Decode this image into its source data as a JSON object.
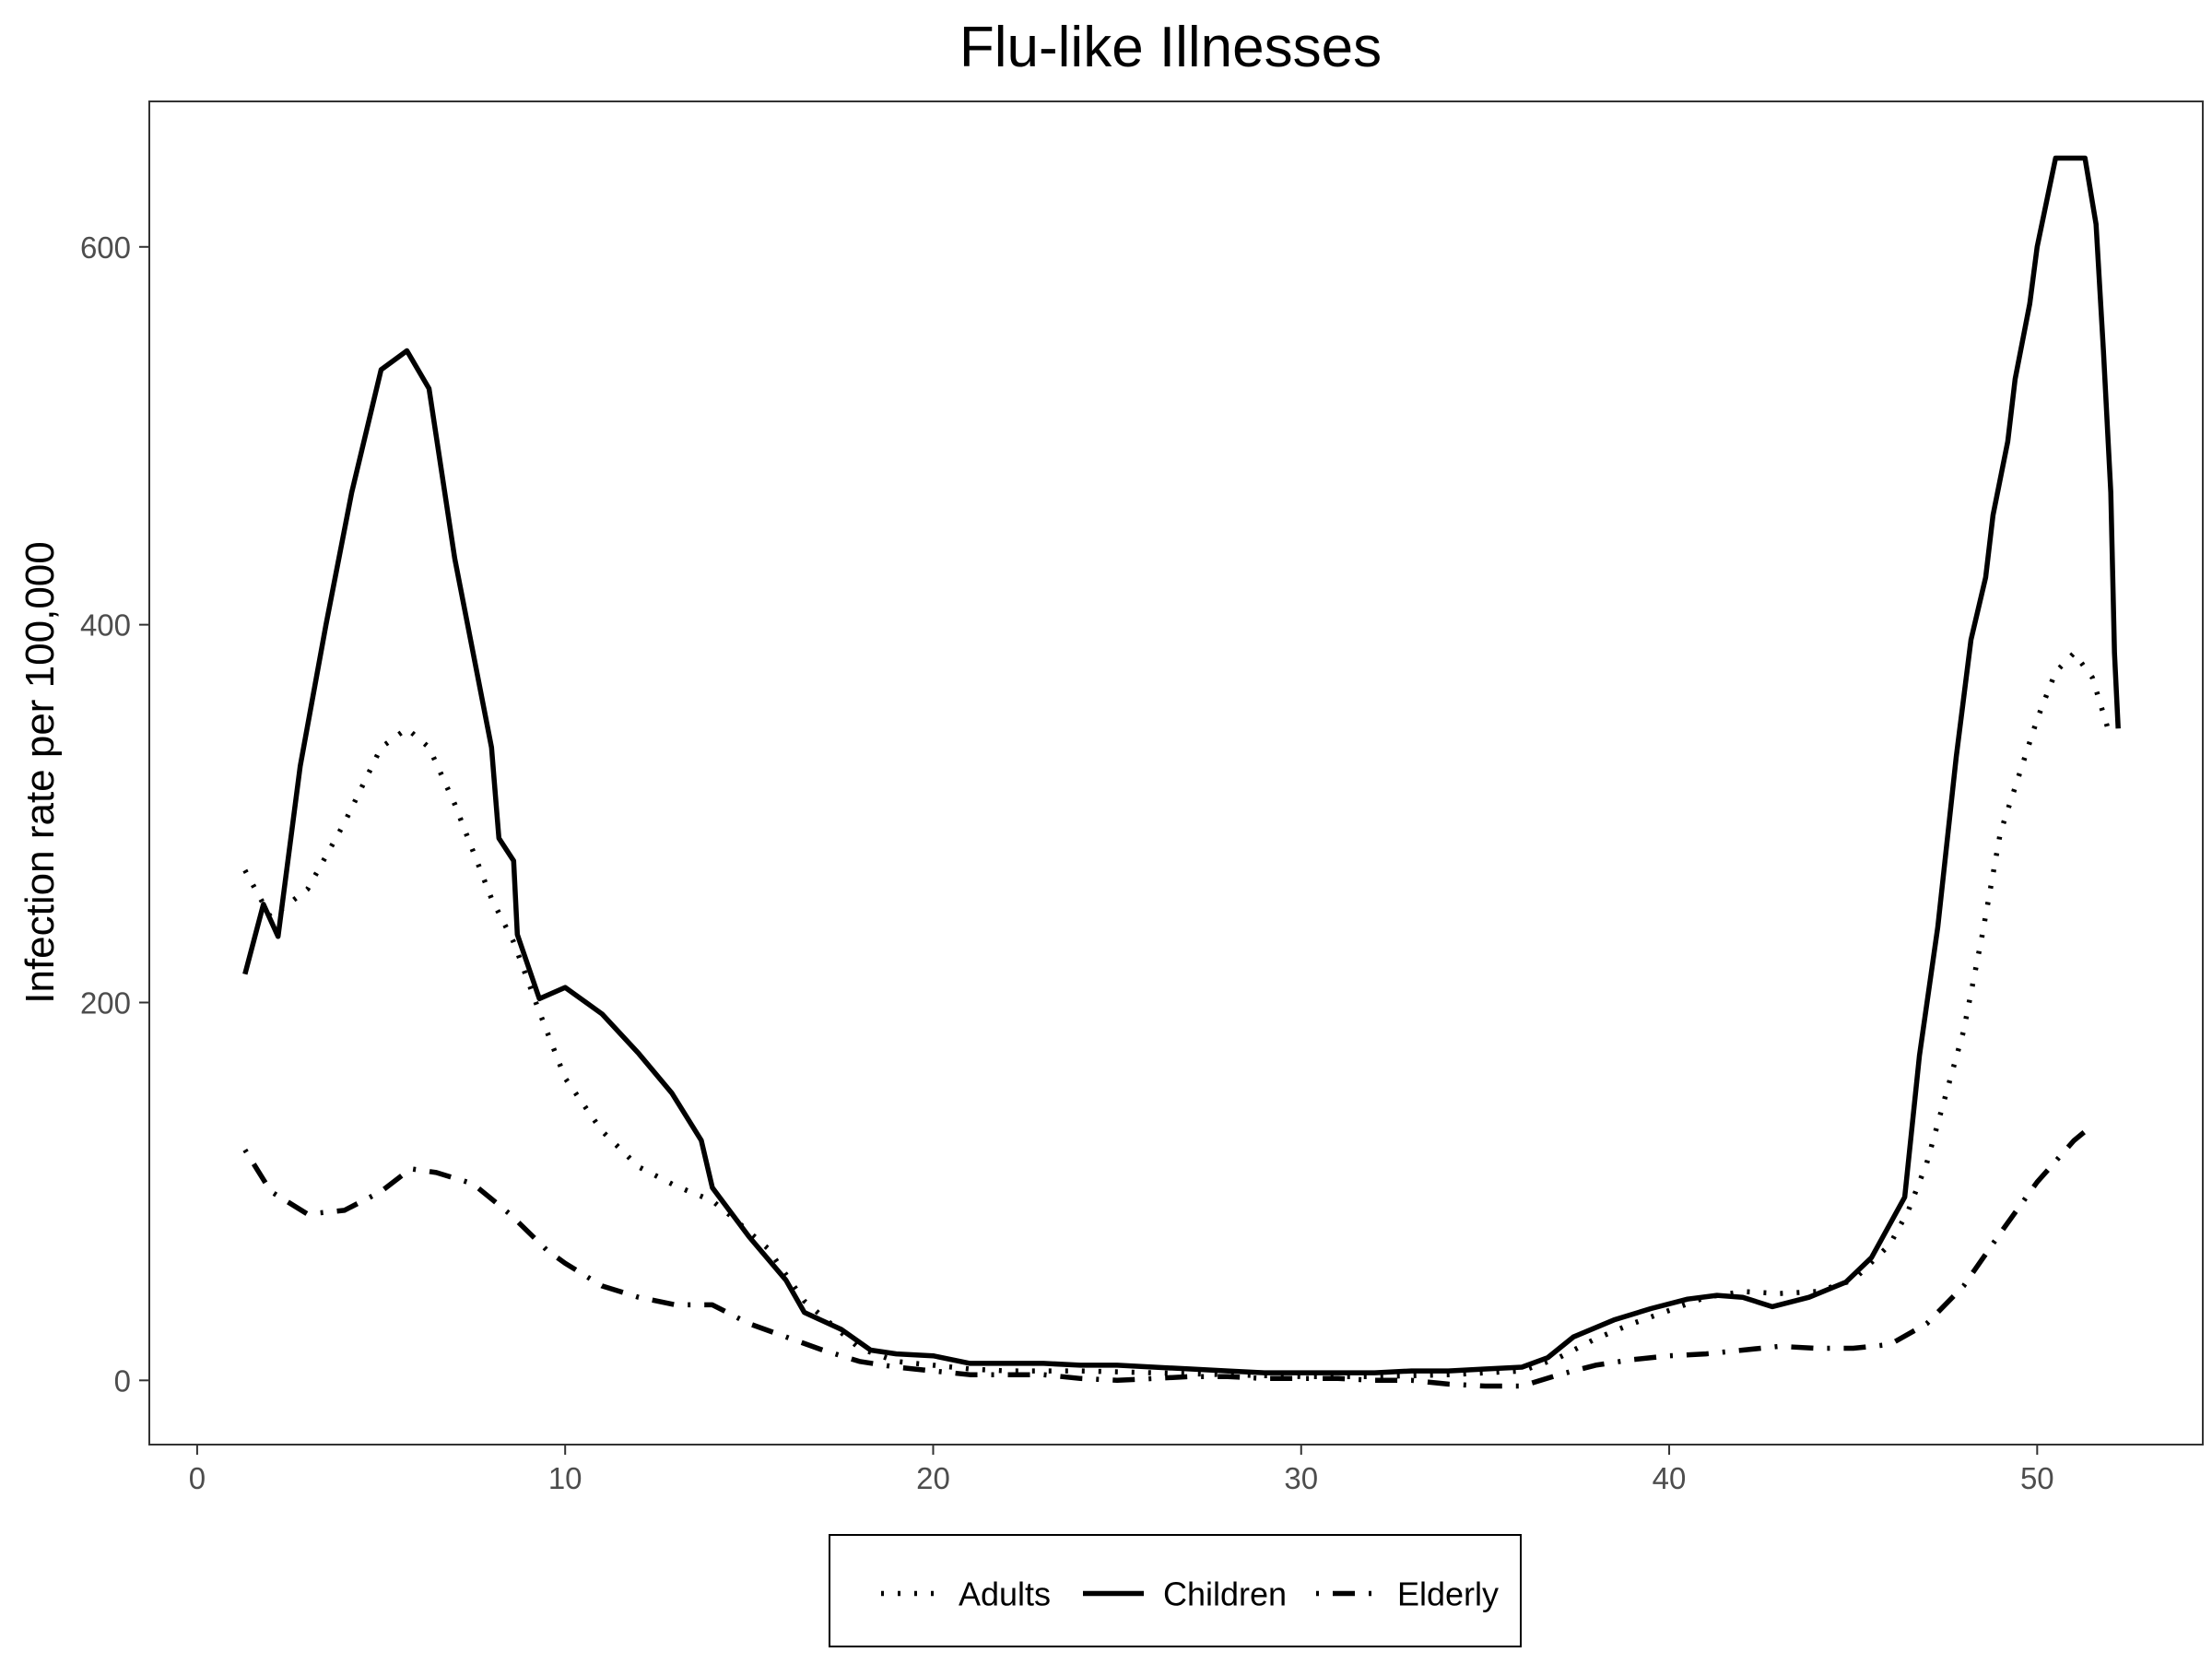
{
  "chart_data": {
    "type": "line",
    "title": "Flu-like Illnesses",
    "xlabel": "",
    "ylabel": "Infection rate per 100,000",
    "xlim": [
      -1.3,
      54.5
    ],
    "ylim": [
      -34,
      677
    ],
    "x_ticks": [
      0,
      10,
      20,
      30,
      40,
      50
    ],
    "y_ticks": [
      0,
      200,
      400,
      600
    ],
    "grid": false,
    "legend_position": "bottom",
    "series": [
      {
        "name": "Adults",
        "line_style": "dotted",
        "color": "#000000",
        "points": [
          [
            1.3,
            270
          ],
          [
            2,
            245
          ],
          [
            3,
            260
          ],
          [
            4,
            295
          ],
          [
            5,
            335
          ],
          [
            5.7,
            345
          ],
          [
            6.3,
            335
          ],
          [
            7,
            305
          ],
          [
            8,
            255
          ],
          [
            8.6,
            232
          ],
          [
            9.3,
            195
          ],
          [
            10,
            160
          ],
          [
            11,
            132
          ],
          [
            12,
            113
          ],
          [
            13,
            103
          ],
          [
            14,
            95
          ],
          [
            14.5,
            87
          ],
          [
            15.5,
            70
          ],
          [
            16.5,
            42
          ],
          [
            18,
            17
          ],
          [
            19,
            10
          ],
          [
            20,
            8
          ],
          [
            21,
            6
          ],
          [
            22,
            5
          ],
          [
            24,
            5
          ],
          [
            26,
            4
          ],
          [
            28,
            3
          ],
          [
            30,
            2
          ],
          [
            32,
            2
          ],
          [
            34,
            3
          ],
          [
            36,
            5
          ],
          [
            37,
            12
          ],
          [
            38,
            22
          ],
          [
            39,
            30
          ],
          [
            40,
            37
          ],
          [
            41,
            44
          ],
          [
            42,
            47
          ],
          [
            43,
            46
          ],
          [
            44,
            47
          ],
          [
            45,
            53
          ],
          [
            46,
            72
          ],
          [
            46.5,
            90
          ],
          [
            47,
            115
          ],
          [
            48,
            185
          ],
          [
            48.5,
            235
          ],
          [
            49,
            290
          ],
          [
            49.5,
            320
          ],
          [
            50,
            350
          ],
          [
            50.5,
            375
          ],
          [
            51,
            385
          ],
          [
            51.5,
            372
          ],
          [
            52,
            340
          ]
        ]
      },
      {
        "name": "Children",
        "line_style": "solid",
        "color": "#000000",
        "points": [
          [
            1.3,
            215
          ],
          [
            1.8,
            252
          ],
          [
            2.2,
            235
          ],
          [
            2.8,
            325
          ],
          [
            3.5,
            400
          ],
          [
            4.2,
            470
          ],
          [
            5,
            535
          ],
          [
            5.7,
            545
          ],
          [
            6.3,
            525
          ],
          [
            7,
            435
          ],
          [
            8,
            335
          ],
          [
            8.2,
            287
          ],
          [
            8.6,
            275
          ],
          [
            8.7,
            236
          ],
          [
            9.3,
            202
          ],
          [
            10,
            208
          ],
          [
            11,
            194
          ],
          [
            12,
            173
          ],
          [
            12.9,
            152
          ],
          [
            13.7,
            127
          ],
          [
            14,
            102
          ],
          [
            15,
            76
          ],
          [
            16,
            53
          ],
          [
            16.5,
            36
          ],
          [
            17.5,
            27
          ],
          [
            18.3,
            16
          ],
          [
            19,
            14
          ],
          [
            20,
            13
          ],
          [
            21,
            9
          ],
          [
            22,
            9
          ],
          [
            23,
            9
          ],
          [
            24,
            8
          ],
          [
            25,
            8
          ],
          [
            26,
            7
          ],
          [
            27,
            6
          ],
          [
            28,
            5
          ],
          [
            29,
            4
          ],
          [
            30,
            4
          ],
          [
            31,
            4
          ],
          [
            32,
            4
          ],
          [
            33,
            5
          ],
          [
            34,
            5
          ],
          [
            35,
            6
          ],
          [
            36,
            7
          ],
          [
            36.7,
            12
          ],
          [
            37.4,
            23
          ],
          [
            38.5,
            32
          ],
          [
            39.5,
            38
          ],
          [
            40.5,
            43
          ],
          [
            41.3,
            45
          ],
          [
            42,
            44
          ],
          [
            42.8,
            39
          ],
          [
            43.8,
            44
          ],
          [
            44.8,
            52
          ],
          [
            45.5,
            65
          ],
          [
            46.4,
            97
          ],
          [
            46.8,
            172
          ],
          [
            47.3,
            240
          ],
          [
            47.8,
            330
          ],
          [
            48.2,
            392
          ],
          [
            48.6,
            425
          ],
          [
            48.8,
            458
          ],
          [
            49.2,
            497
          ],
          [
            49.4,
            530
          ],
          [
            49.8,
            570
          ],
          [
            50,
            600
          ],
          [
            50.5,
            647
          ],
          [
            51.3,
            647
          ],
          [
            51.6,
            612
          ],
          [
            51.8,
            545
          ],
          [
            52,
            470
          ],
          [
            52.1,
            385
          ],
          [
            52.2,
            345
          ]
        ]
      },
      {
        "name": "Elderly",
        "line_style": "dashdot",
        "color": "#000000",
        "points": [
          [
            1.3,
            122
          ],
          [
            2,
            100
          ],
          [
            3,
            88
          ],
          [
            4,
            90
          ],
          [
            5,
            100
          ],
          [
            5.8,
            112
          ],
          [
            6.5,
            110
          ],
          [
            7.5,
            104
          ],
          [
            8.5,
            88
          ],
          [
            9.5,
            69
          ],
          [
            10,
            62
          ],
          [
            11,
            50
          ],
          [
            12,
            44
          ],
          [
            13,
            40
          ],
          [
            14,
            40
          ],
          [
            15,
            30
          ],
          [
            16,
            23
          ],
          [
            17,
            16
          ],
          [
            18,
            10
          ],
          [
            19,
            7
          ],
          [
            20,
            5
          ],
          [
            21,
            3
          ],
          [
            22,
            3
          ],
          [
            23,
            3
          ],
          [
            24,
            1
          ],
          [
            25,
            0
          ],
          [
            26,
            1
          ],
          [
            27,
            2
          ],
          [
            28,
            2
          ],
          [
            29,
            1
          ],
          [
            30,
            1
          ],
          [
            31,
            1
          ],
          [
            32,
            0
          ],
          [
            33,
            0
          ],
          [
            34,
            -2
          ],
          [
            35,
            -3
          ],
          [
            36,
            -3
          ],
          [
            37,
            3
          ],
          [
            38,
            8
          ],
          [
            39,
            11
          ],
          [
            40,
            13
          ],
          [
            41,
            14
          ],
          [
            42,
            16
          ],
          [
            43,
            18
          ],
          [
            44,
            17
          ],
          [
            45,
            17
          ],
          [
            46,
            19
          ],
          [
            47,
            30
          ],
          [
            48,
            50
          ],
          [
            49,
            78
          ],
          [
            50,
            105
          ],
          [
            51,
            127
          ],
          [
            51.5,
            135
          ]
        ]
      }
    ]
  }
}
